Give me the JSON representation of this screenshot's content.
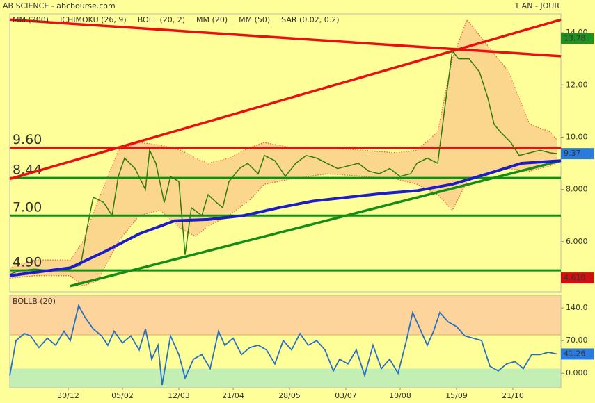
{
  "chart_data": {
    "type": "line",
    "title": "AB SCIENCE - abcbourse.com",
    "period": "1 AN - JOUR",
    "color": "#2f7a12",
    "x": [
      0,
      5,
      12,
      19,
      29,
      34,
      37,
      40,
      45,
      49,
      52,
      55,
      60,
      65,
      67,
      70,
      74,
      77,
      81,
      84,
      87,
      92,
      95,
      99,
      102,
      105,
      110,
      114,
      119,
      122,
      127,
      132,
      137,
      142,
      147,
      152,
      157,
      162,
      167,
      172,
      177,
      182,
      187,
      192,
      195,
      200,
      205,
      209,
      212,
      215,
      220,
      225,
      229,
      232,
      235,
      240,
      244,
      249,
      254,
      259,
      262
    ],
    "values": [
      4.75,
      4.9,
      4.95,
      4.9,
      5.0,
      5.1,
      6.5,
      7.7,
      7.5,
      7.0,
      8.5,
      9.2,
      8.8,
      8.0,
      9.5,
      9.0,
      7.5,
      8.5,
      8.3,
      5.5,
      7.3,
      7.0,
      7.8,
      7.5,
      7.3,
      8.3,
      8.8,
      9.0,
      8.6,
      9.3,
      9.1,
      8.5,
      9.0,
      9.3,
      9.2,
      9.0,
      8.8,
      8.9,
      9.0,
      8.7,
      8.6,
      8.8,
      8.5,
      8.6,
      9.0,
      9.2,
      9.0,
      11.5,
      13.3,
      13.0,
      13.0,
      12.5,
      11.5,
      10.5,
      10.2,
      9.8,
      9.3,
      9.4,
      9.5,
      9.4,
      9.37
    ],
    "xlim": [
      0,
      264
    ],
    "xticks": [
      {
        "value": 28,
        "label": "30/12"
      },
      {
        "value": 54,
        "label": "05/02"
      },
      {
        "value": 81,
        "label": "12/03"
      },
      {
        "value": 107,
        "label": "21/04"
      },
      {
        "value": 134,
        "label": "28/05"
      },
      {
        "value": 161,
        "label": "03/07"
      },
      {
        "value": 187,
        "label": "10/08"
      },
      {
        "value": 214,
        "label": "15/09"
      },
      {
        "value": 241,
        "label": "21/10"
      }
    ],
    "ylim": [
      4.08,
      14.72
    ],
    "yticks": [
      {
        "value": 6,
        "label": "6.000"
      },
      {
        "value": 8,
        "label": "8.000"
      },
      {
        "value": 10,
        "label": "10.00"
      },
      {
        "value": 12,
        "label": "12.00"
      },
      {
        "value": 14,
        "label": "14.00"
      }
    ],
    "indicators": [
      {
        "name": "MM (200)",
        "color": "#1c1cc8",
        "x": [
          0,
          29,
          45,
          62,
          79,
          95,
          112,
          129,
          145,
          162,
          179,
          195,
          212,
          229,
          245,
          264
        ],
        "values": [
          4.7,
          5.0,
          5.6,
          6.3,
          6.8,
          6.85,
          7.0,
          7.3,
          7.55,
          7.7,
          7.85,
          7.95,
          8.2,
          8.6,
          9.0,
          9.1
        ]
      },
      {
        "name": "ICHIMOKU (26, 9)",
        "color": "#1c1cc8"
      },
      {
        "name": "BOLL (20, 2)",
        "color": "#e8603c",
        "x": [
          0,
          12,
          29,
          35,
          42,
          52,
          62,
          72,
          82,
          89,
          95,
          105,
          115,
          122,
          135,
          152,
          169,
          185,
          195,
          205,
          212,
          219,
          229,
          239,
          249,
          259,
          262
        ],
        "upper": [
          5.0,
          5.3,
          5.3,
          6.0,
          7.5,
          9.5,
          9.8,
          9.7,
          9.5,
          9.2,
          9.0,
          9.2,
          9.6,
          9.8,
          9.6,
          9.6,
          9.5,
          9.4,
          9.5,
          10.2,
          13.0,
          14.5,
          13.5,
          12.5,
          10.5,
          10.2,
          9.9
        ],
        "lower": [
          4.6,
          4.7,
          4.7,
          4.3,
          4.5,
          6.0,
          7.0,
          7.2,
          6.5,
          6.2,
          6.6,
          7.0,
          7.6,
          8.2,
          8.4,
          8.6,
          8.5,
          8.4,
          8.2,
          7.8,
          7.2,
          8.3,
          8.6,
          8.8,
          8.7,
          8.9,
          9.0
        ]
      },
      {
        "name": "MM (20)",
        "color": "#108a10"
      },
      {
        "name": "MM (50)",
        "color": "#e00000"
      },
      {
        "name": "SAR (0.02, 0.2)",
        "color": "#e00000"
      }
    ],
    "trendlines": [
      {
        "color": "#e81010",
        "x": [
          0,
          264
        ],
        "values": [
          14.5,
          13.1
        ]
      },
      {
        "color": "#e81010",
        "x": [
          0,
          264
        ],
        "values": [
          8.4,
          14.5
        ]
      },
      {
        "color": "#158c15",
        "x": [
          29,
          264
        ],
        "values": [
          4.3,
          9.1
        ]
      }
    ],
    "levels": [
      {
        "value": 9.6,
        "label": "9.60",
        "color": "#e81010"
      },
      {
        "value": 8.44,
        "label": "8.44",
        "color": "#158c15"
      },
      {
        "value": 7.0,
        "label": "7.00",
        "color": "#158c15"
      },
      {
        "value": 4.9,
        "label": "4.90",
        "color": "#158c15"
      }
    ],
    "tags": [
      {
        "value": 13.78,
        "label": "13.78",
        "color": "#1f8f1f"
      },
      {
        "value": 9.37,
        "label": "9.37",
        "color": "#2a7be0"
      },
      {
        "value": 4.61,
        "label": "4.610",
        "color": "#d01010"
      }
    ],
    "oscillator": {
      "title": "BOLLB (20)",
      "color": "#2a6fc0",
      "ylim": [
        -31,
        167
      ],
      "yticks": [
        {
          "value": 0,
          "label": "0.000"
        },
        {
          "value": 70,
          "label": "70.00"
        },
        {
          "value": 140,
          "label": "140.0"
        }
      ],
      "bands": [
        {
          "from": 82,
          "to": 167,
          "color": "#fcd49c"
        },
        {
          "from": -31,
          "to": 10,
          "color": "#c4efb4"
        }
      ],
      "x": [
        0,
        3,
        7,
        10,
        14,
        18,
        22,
        26,
        29,
        33,
        36,
        40,
        44,
        47,
        50,
        54,
        58,
        62,
        65,
        68,
        71,
        73,
        77,
        81,
        84,
        88,
        92,
        96,
        100,
        103,
        107,
        111,
        115,
        119,
        123,
        127,
        131,
        135,
        139,
        143,
        147,
        151,
        155,
        158,
        162,
        166,
        170,
        174,
        178,
        182,
        186,
        190,
        193,
        196,
        200,
        203,
        206,
        210,
        214,
        218,
        222,
        226,
        230,
        234,
        238,
        242,
        246,
        250,
        254,
        258,
        262
      ],
      "values": [
        -5,
        70,
        85,
        80,
        55,
        75,
        60,
        90,
        70,
        145,
        120,
        95,
        80,
        60,
        90,
        65,
        80,
        50,
        95,
        30,
        60,
        -25,
        80,
        40,
        -10,
        30,
        40,
        10,
        90,
        60,
        75,
        40,
        55,
        60,
        50,
        20,
        70,
        50,
        85,
        60,
        70,
        50,
        5,
        30,
        20,
        50,
        -5,
        60,
        10,
        30,
        0,
        70,
        130,
        100,
        60,
        90,
        130,
        110,
        100,
        80,
        75,
        70,
        15,
        5,
        20,
        25,
        10,
        40,
        40,
        45,
        41.26
      ],
      "tag": {
        "value": 41.26,
        "label": "41.26",
        "color": "#2a7be0"
      }
    }
  }
}
